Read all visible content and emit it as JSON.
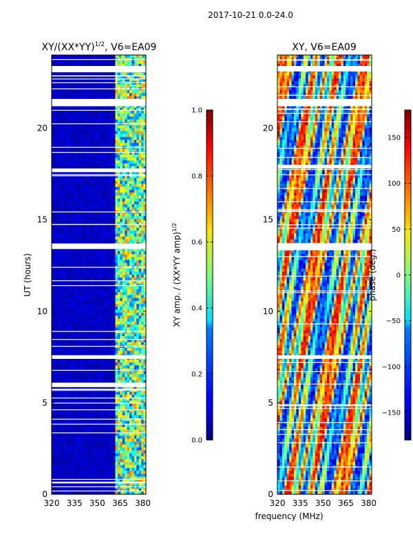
{
  "figure": {
    "suptitle": "2017-10-21 0.0-24.0",
    "xlabel_shared": "frequency (MHz)"
  },
  "chart_data": [
    {
      "type": "heatmap",
      "title_main": "XY/(XX*YY)",
      "title_exp": "1/2",
      "title_tail": ", V6=EA09",
      "ylabel": "UT (hours)",
      "xlim": [
        320,
        382
      ],
      "ylim": [
        0,
        24
      ],
      "xticks": [
        320,
        335,
        350,
        365,
        380
      ],
      "yticks": [
        0,
        5,
        10,
        15,
        20
      ],
      "flag_bands_hours": [
        [
          23.1,
          23.4
        ],
        [
          21.2,
          21.6
        ],
        [
          17.6,
          17.8
        ],
        [
          13.4,
          13.7
        ],
        [
          7.4,
          7.6
        ],
        [
          5.9,
          6.1
        ]
      ],
      "colorbar": {
        "label_main": "XY amp. / (XX*YY amp)",
        "label_exp": "1/2",
        "vmin": 0.0,
        "vmax": 1.0,
        "ticks": [
          "0.0",
          "0.2",
          "0.4",
          "0.6",
          "0.8",
          "1.0"
        ],
        "tick_values": [
          0.0,
          0.2,
          0.4,
          0.6,
          0.8,
          1.0
        ]
      }
    },
    {
      "type": "heatmap",
      "title": "XY, V6=EA09",
      "xlim": [
        320,
        382
      ],
      "ylim": [
        0,
        24
      ],
      "xticks": [
        320,
        335,
        350,
        365,
        380
      ],
      "yticks": [
        0,
        5,
        10,
        15,
        20
      ],
      "flag_bands_hours": [
        [
          23.1,
          23.4
        ],
        [
          21.2,
          21.6
        ],
        [
          17.8,
          18.0
        ],
        [
          13.4,
          13.7
        ],
        [
          7.4,
          7.6
        ]
      ],
      "colorbar": {
        "label": "phase (deg.)",
        "vmin": -180,
        "vmax": 180,
        "ticks": [
          "−150",
          "−100",
          "−50",
          "0",
          "50",
          "100",
          "150"
        ],
        "tick_values": [
          -150,
          -100,
          -50,
          0,
          50,
          100,
          150
        ]
      }
    }
  ]
}
